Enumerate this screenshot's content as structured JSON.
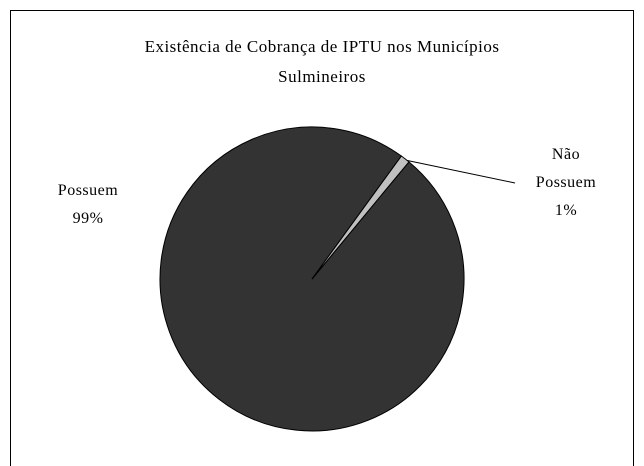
{
  "chart_data": {
    "type": "pie",
    "title": "Existência de Cobrança de IPTU nos Municípios Sulmineiros",
    "categories": [
      "Possuem",
      "Não Possuem"
    ],
    "values": [
      99,
      1
    ],
    "value_labels": [
      "99%",
      "1%"
    ],
    "colors": [
      "#333333",
      "#c0c0c0"
    ]
  }
}
